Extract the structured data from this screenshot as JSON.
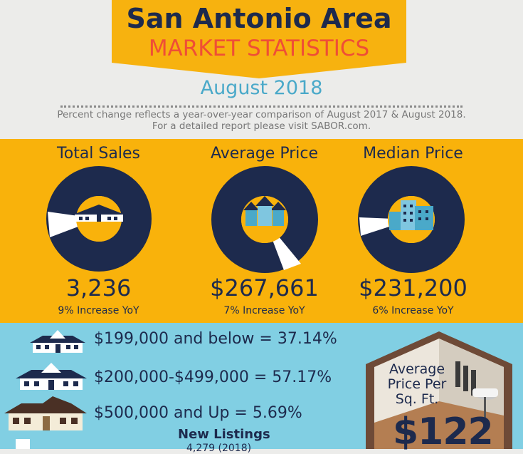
{
  "header": {
    "title": "San Antonio Area",
    "subtitle": "MARKET STATISTICS",
    "month": "August 2018",
    "note_line1": "Percent change reflects a year-over-year comparison of August 2017 & August 2018.",
    "note_line2": "For a detailed report please visit SABOR.com."
  },
  "stats": [
    {
      "label": "Total Sales",
      "value": "3,236",
      "change": "9% Increase YoY",
      "percent": 9,
      "icon": "house-icon"
    },
    {
      "label": "Average Price",
      "value": "$267,661",
      "change": "7% Increase YoY",
      "percent": 7,
      "icon": "townhouses-icon"
    },
    {
      "label": "Median Price",
      "value": "$231,200",
      "change": "6% Increase YoY",
      "percent": 6,
      "icon": "apartment-building-icon"
    }
  ],
  "price_ranges": [
    {
      "text": "$199,000 and below = 37.14%"
    },
    {
      "text": "$200,000-$499,000 = 57.17%"
    },
    {
      "text": "$500,000 and Up = 5.69%"
    }
  ],
  "listings": {
    "title": "New Listings",
    "value": "4,279 (2018)"
  },
  "price_per_sqft": {
    "label_line1": "Average",
    "label_line2": "Price Per",
    "label_line3": "Sq. Ft.",
    "value": "$122"
  },
  "colors": {
    "navy": "#1d2a4d",
    "orange": "#f9b20b",
    "coral": "#ef4e36",
    "sky": "#81cfe3",
    "teal": "#4aa9c9"
  }
}
